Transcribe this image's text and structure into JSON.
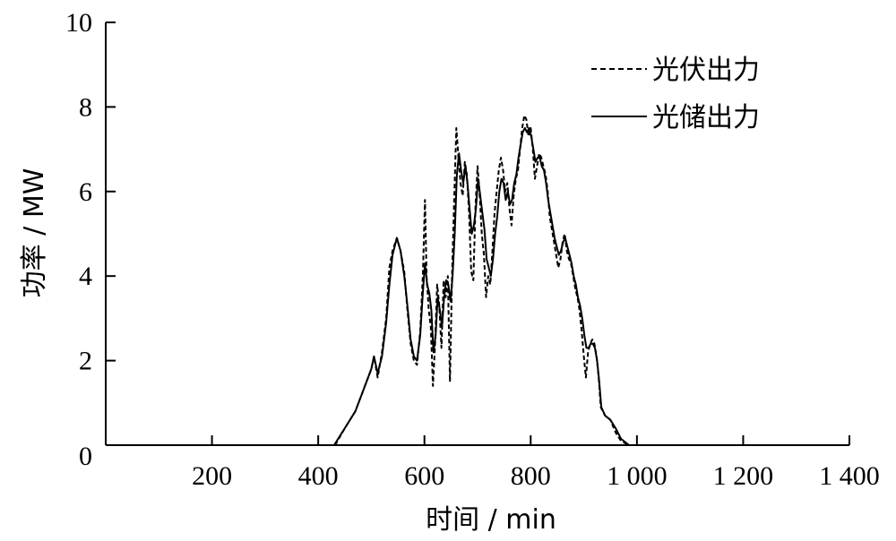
{
  "chart_data": {
    "type": "line",
    "xlabel": "时间 / min",
    "ylabel": "功率 / MW",
    "xlim": [
      0,
      1400
    ],
    "ylim": [
      0,
      10
    ],
    "x_ticks": [
      200,
      400,
      600,
      800,
      1000,
      1200,
      1400
    ],
    "x_tick_labels": [
      "200",
      "400",
      "600",
      "800",
      "1 000",
      "1 200",
      "1 400"
    ],
    "y_ticks": [
      0,
      2,
      4,
      6,
      8,
      10
    ],
    "y_tick_labels": [
      "0",
      "2",
      "4",
      "6",
      "8",
      "10"
    ],
    "grid": false,
    "legend_position": "top-right",
    "series": [
      {
        "name": "光伏出力",
        "style": "dashed",
        "color": "#000000",
        "points": [
          [
            432,
            0
          ],
          [
            450,
            0.4
          ],
          [
            470,
            0.8
          ],
          [
            485,
            1.3
          ],
          [
            500,
            1.8
          ],
          [
            505,
            2.1
          ],
          [
            512,
            1.6
          ],
          [
            520,
            2.2
          ],
          [
            528,
            3.0
          ],
          [
            534,
            4.2
          ],
          [
            540,
            4.6
          ],
          [
            548,
            4.9
          ],
          [
            555,
            4.6
          ],
          [
            562,
            4.1
          ],
          [
            568,
            3.2
          ],
          [
            574,
            2.4
          ],
          [
            580,
            2.0
          ],
          [
            586,
            1.9
          ],
          [
            592,
            2.7
          ],
          [
            597,
            4.0
          ],
          [
            601,
            5.8
          ],
          [
            604,
            4.0
          ],
          [
            608,
            3.2
          ],
          [
            612,
            2.8
          ],
          [
            616,
            1.4
          ],
          [
            620,
            2.4
          ],
          [
            624,
            3.8
          ],
          [
            628,
            3.3
          ],
          [
            632,
            2.3
          ],
          [
            636,
            3.9
          ],
          [
            640,
            3.5
          ],
          [
            644,
            4.0
          ],
          [
            648,
            1.5
          ],
          [
            652,
            4.0
          ],
          [
            656,
            5.8
          ],
          [
            660,
            7.5
          ],
          [
            664,
            6.8
          ],
          [
            668,
            6.2
          ],
          [
            672,
            5.9
          ],
          [
            676,
            6.7
          ],
          [
            680,
            6.4
          ],
          [
            684,
            5.5
          ],
          [
            688,
            4.1
          ],
          [
            692,
            3.9
          ],
          [
            696,
            5.6
          ],
          [
            700,
            6.6
          ],
          [
            704,
            5.9
          ],
          [
            708,
            5.0
          ],
          [
            712,
            4.5
          ],
          [
            716,
            3.5
          ],
          [
            720,
            4.0
          ],
          [
            724,
            3.8
          ],
          [
            728,
            4.6
          ],
          [
            732,
            5.5
          ],
          [
            736,
            6.0
          ],
          [
            740,
            6.5
          ],
          [
            744,
            6.8
          ],
          [
            748,
            6.5
          ],
          [
            752,
            6.0
          ],
          [
            756,
            6.2
          ],
          [
            760,
            5.6
          ],
          [
            764,
            5.2
          ],
          [
            768,
            5.9
          ],
          [
            772,
            6.3
          ],
          [
            776,
            6.5
          ],
          [
            780,
            7.0
          ],
          [
            784,
            7.5
          ],
          [
            788,
            7.8
          ],
          [
            792,
            7.7
          ],
          [
            796,
            7.3
          ],
          [
            800,
            7.5
          ],
          [
            804,
            7.0
          ],
          [
            808,
            6.3
          ],
          [
            812,
            6.6
          ],
          [
            816,
            6.9
          ],
          [
            820,
            6.8
          ],
          [
            824,
            6.6
          ],
          [
            828,
            6.4
          ],
          [
            832,
            6.0
          ],
          [
            836,
            5.4
          ],
          [
            840,
            5.1
          ],
          [
            844,
            4.8
          ],
          [
            848,
            4.5
          ],
          [
            852,
            4.2
          ],
          [
            856,
            4.4
          ],
          [
            860,
            4.8
          ],
          [
            864,
            5.0
          ],
          [
            868,
            4.6
          ],
          [
            872,
            4.4
          ],
          [
            876,
            4.3
          ],
          [
            880,
            4.0
          ],
          [
            884,
            3.7
          ],
          [
            888,
            3.5
          ],
          [
            892,
            3.2
          ],
          [
            896,
            2.7
          ],
          [
            900,
            2.1
          ],
          [
            904,
            1.6
          ],
          [
            908,
            2.2
          ],
          [
            912,
            2.4
          ],
          [
            916,
            2.5
          ],
          [
            920,
            2.4
          ],
          [
            924,
            2.1
          ],
          [
            928,
            1.6
          ],
          [
            932,
            0.9
          ],
          [
            940,
            0.7
          ],
          [
            950,
            0.6
          ],
          [
            960,
            0.3
          ],
          [
            970,
            0.1
          ],
          [
            985,
            0
          ]
        ]
      },
      {
        "name": "光储出力",
        "style": "solid",
        "color": "#000000",
        "points": [
          [
            430,
            0
          ],
          [
            450,
            0.4
          ],
          [
            470,
            0.8
          ],
          [
            485,
            1.3
          ],
          [
            500,
            1.8
          ],
          [
            505,
            2.1
          ],
          [
            512,
            1.7
          ],
          [
            520,
            2.1
          ],
          [
            528,
            2.9
          ],
          [
            534,
            3.8
          ],
          [
            540,
            4.5
          ],
          [
            548,
            4.9
          ],
          [
            555,
            4.6
          ],
          [
            562,
            4.0
          ],
          [
            568,
            3.3
          ],
          [
            574,
            2.5
          ],
          [
            580,
            2.1
          ],
          [
            586,
            2.0
          ],
          [
            592,
            2.6
          ],
          [
            597,
            3.6
          ],
          [
            601,
            4.3
          ],
          [
            605,
            3.8
          ],
          [
            609,
            3.6
          ],
          [
            613,
            3.2
          ],
          [
            617,
            2.2
          ],
          [
            621,
            2.6
          ],
          [
            625,
            3.5
          ],
          [
            629,
            3.2
          ],
          [
            633,
            2.8
          ],
          [
            637,
            3.5
          ],
          [
            641,
            3.9
          ],
          [
            645,
            3.8
          ],
          [
            649,
            3.4
          ],
          [
            653,
            4.0
          ],
          [
            657,
            5.0
          ],
          [
            661,
            6.4
          ],
          [
            665,
            6.9
          ],
          [
            669,
            6.5
          ],
          [
            673,
            6.2
          ],
          [
            677,
            6.6
          ],
          [
            681,
            6.2
          ],
          [
            685,
            5.6
          ],
          [
            689,
            5.0
          ],
          [
            693,
            5.2
          ],
          [
            697,
            5.6
          ],
          [
            701,
            6.3
          ],
          [
            705,
            5.9
          ],
          [
            709,
            5.5
          ],
          [
            713,
            5.1
          ],
          [
            717,
            4.4
          ],
          [
            721,
            4.2
          ],
          [
            725,
            4.0
          ],
          [
            729,
            4.4
          ],
          [
            733,
            5.0
          ],
          [
            737,
            5.4
          ],
          [
            741,
            6.0
          ],
          [
            745,
            6.3
          ],
          [
            749,
            6.2
          ],
          [
            753,
            5.8
          ],
          [
            757,
            6.0
          ],
          [
            761,
            5.7
          ],
          [
            765,
            5.8
          ],
          [
            769,
            6.2
          ],
          [
            773,
            6.4
          ],
          [
            777,
            6.8
          ],
          [
            781,
            7.1
          ],
          [
            785,
            7.4
          ],
          [
            789,
            7.5
          ],
          [
            793,
            7.4
          ],
          [
            797,
            7.5
          ],
          [
            801,
            7.3
          ],
          [
            805,
            7.0
          ],
          [
            809,
            6.7
          ],
          [
            813,
            6.8
          ],
          [
            817,
            6.8
          ],
          [
            821,
            6.6
          ],
          [
            825,
            6.5
          ],
          [
            829,
            6.2
          ],
          [
            833,
            5.8
          ],
          [
            837,
            5.5
          ],
          [
            841,
            5.2
          ],
          [
            845,
            4.9
          ],
          [
            849,
            4.7
          ],
          [
            853,
            4.5
          ],
          [
            857,
            4.6
          ],
          [
            861,
            4.8
          ],
          [
            865,
            4.9
          ],
          [
            869,
            4.7
          ],
          [
            873,
            4.5
          ],
          [
            877,
            4.3
          ],
          [
            881,
            4.0
          ],
          [
            885,
            3.8
          ],
          [
            889,
            3.5
          ],
          [
            893,
            3.3
          ],
          [
            897,
            3.0
          ],
          [
            901,
            2.6
          ],
          [
            905,
            2.3
          ],
          [
            909,
            2.3
          ],
          [
            913,
            2.4
          ],
          [
            917,
            2.4
          ],
          [
            921,
            2.3
          ],
          [
            925,
            2.0
          ],
          [
            929,
            1.5
          ],
          [
            933,
            0.9
          ],
          [
            940,
            0.7
          ],
          [
            950,
            0.6
          ],
          [
            960,
            0.4
          ],
          [
            970,
            0.15
          ],
          [
            985,
            0
          ]
        ]
      }
    ]
  }
}
